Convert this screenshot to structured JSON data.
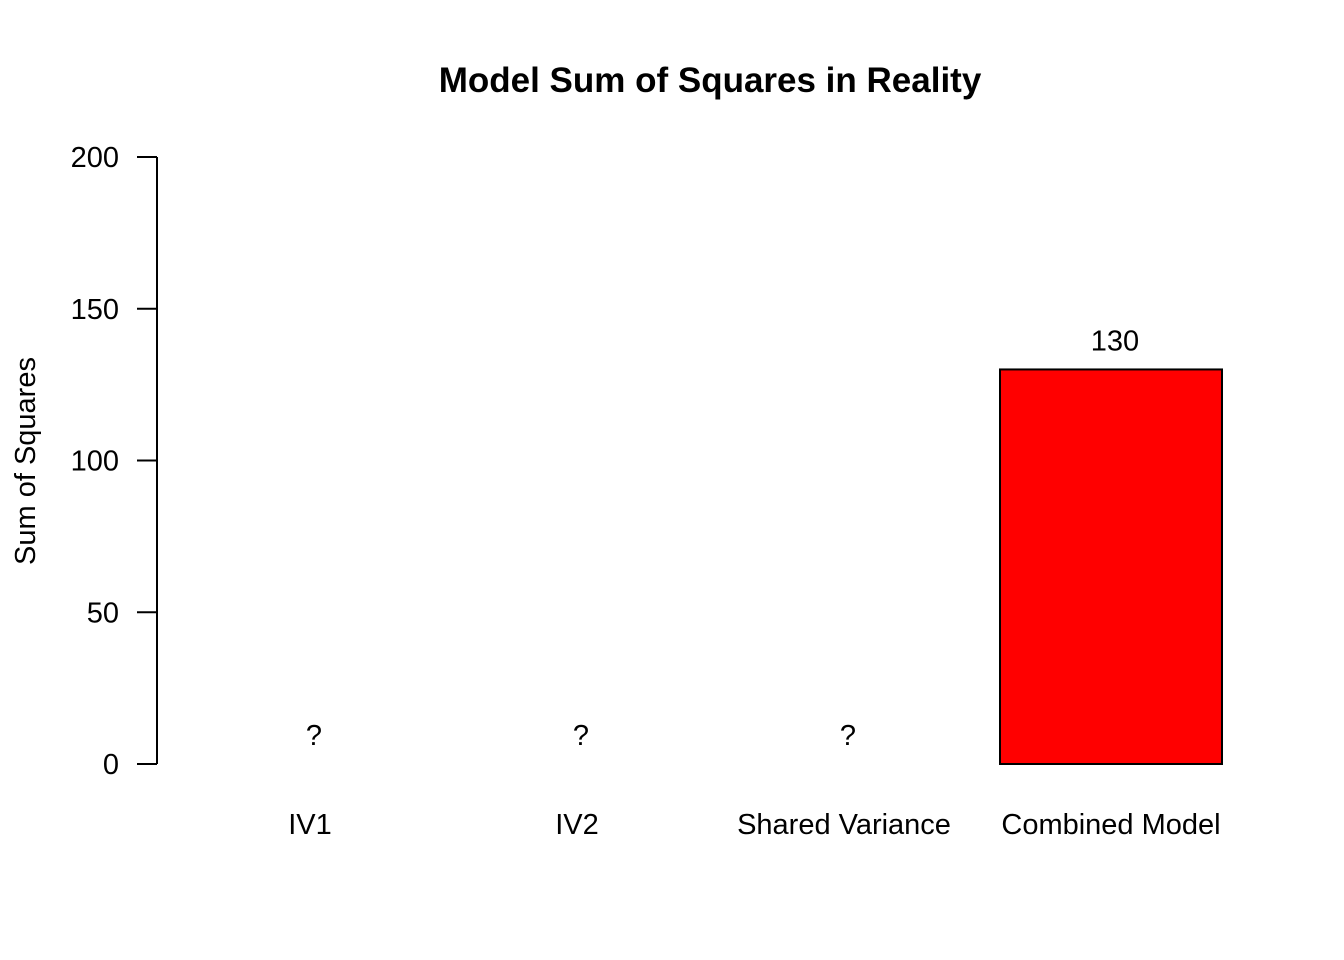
{
  "chart_data": {
    "type": "bar",
    "title": "Model Sum of Squares in Reality",
    "xlabel": "",
    "ylabel": "Sum of Squares",
    "ylim": [
      0,
      200
    ],
    "yticks": [
      0,
      50,
      100,
      150,
      200
    ],
    "grid": false,
    "categories": [
      "IV1",
      "IV2",
      "Shared Variance",
      "Combined Model"
    ],
    "values": [
      0,
      0,
      0,
      130
    ],
    "data_labels": [
      "?",
      "?",
      "?",
      "130"
    ],
    "colors": [
      "#ffffff",
      "#ffffff",
      "#ffffff",
      "#ff0000"
    ]
  }
}
